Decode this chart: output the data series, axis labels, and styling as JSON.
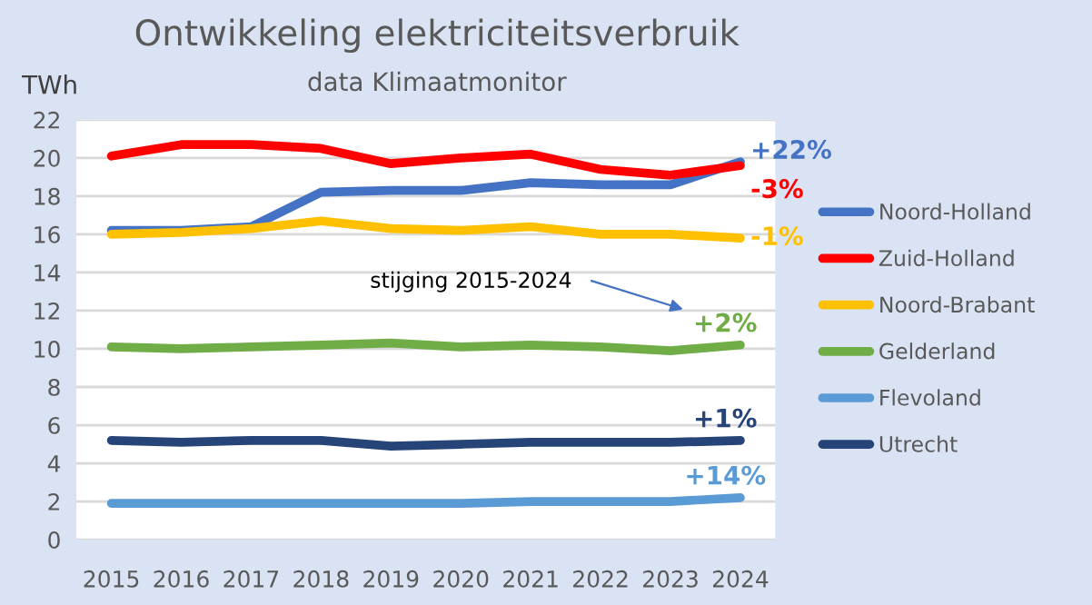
{
  "chart_data": {
    "type": "line",
    "title": "Ontwikkeling elektriciteitsverbruik",
    "subtitle": "data Klimaatmonitor",
    "ylabel": "TWh",
    "categories": [
      "2015",
      "2016",
      "2017",
      "2018",
      "2019",
      "2020",
      "2021",
      "2022",
      "2023",
      "2024"
    ],
    "series": [
      {
        "name": "Noord-Holland",
        "color": "#4472c4",
        "values": [
          16.2,
          16.2,
          16.4,
          18.2,
          18.3,
          18.3,
          18.7,
          18.6,
          18.6,
          19.8
        ]
      },
      {
        "name": "Zuid-Holland",
        "color": "#ff0000",
        "values": [
          20.1,
          20.7,
          20.7,
          20.5,
          19.7,
          20.0,
          20.2,
          19.4,
          19.1,
          19.6
        ]
      },
      {
        "name": "Noord-Brabant",
        "color": "#ffc000",
        "values": [
          16.0,
          16.1,
          16.3,
          16.7,
          16.3,
          16.2,
          16.4,
          16.0,
          16.0,
          15.8
        ]
      },
      {
        "name": "Gelderland",
        "color": "#70ad47",
        "values": [
          10.1,
          10.0,
          10.1,
          10.2,
          10.3,
          10.1,
          10.2,
          10.1,
          9.9,
          10.2
        ]
      },
      {
        "name": "Flevoland",
        "color": "#5b9bd5",
        "values": [
          1.9,
          1.9,
          1.9,
          1.9,
          1.9,
          1.9,
          2.0,
          2.0,
          2.0,
          2.2
        ]
      },
      {
        "name": "Utrecht",
        "color": "#264478",
        "values": [
          5.2,
          5.1,
          5.2,
          5.2,
          4.9,
          5.0,
          5.1,
          5.1,
          5.1,
          5.2
        ]
      }
    ],
    "annotations": [
      {
        "text": "+22%",
        "x": "2024",
        "y": 19.8
      },
      {
        "text": "-3%",
        "x": "2024",
        "y": 19.6
      },
      {
        "text": "-1%",
        "x": "2024",
        "y": 15.8
      },
      {
        "text": "+2%",
        "x": "2024",
        "y": 10.2
      },
      {
        "text": "+14%",
        "x": "2024",
        "y": 2.2
      },
      {
        "text": "+1%",
        "x": "2024",
        "y": 5.2
      },
      "stijging 2015-2024"
    ],
    "ylim": [
      0,
      22
    ],
    "yticks": [
      0,
      2,
      4,
      6,
      8,
      10,
      12,
      14,
      16,
      18,
      20,
      22
    ],
    "grid": "y",
    "legend": "right",
    "marker": "none",
    "line_style": "solid"
  }
}
